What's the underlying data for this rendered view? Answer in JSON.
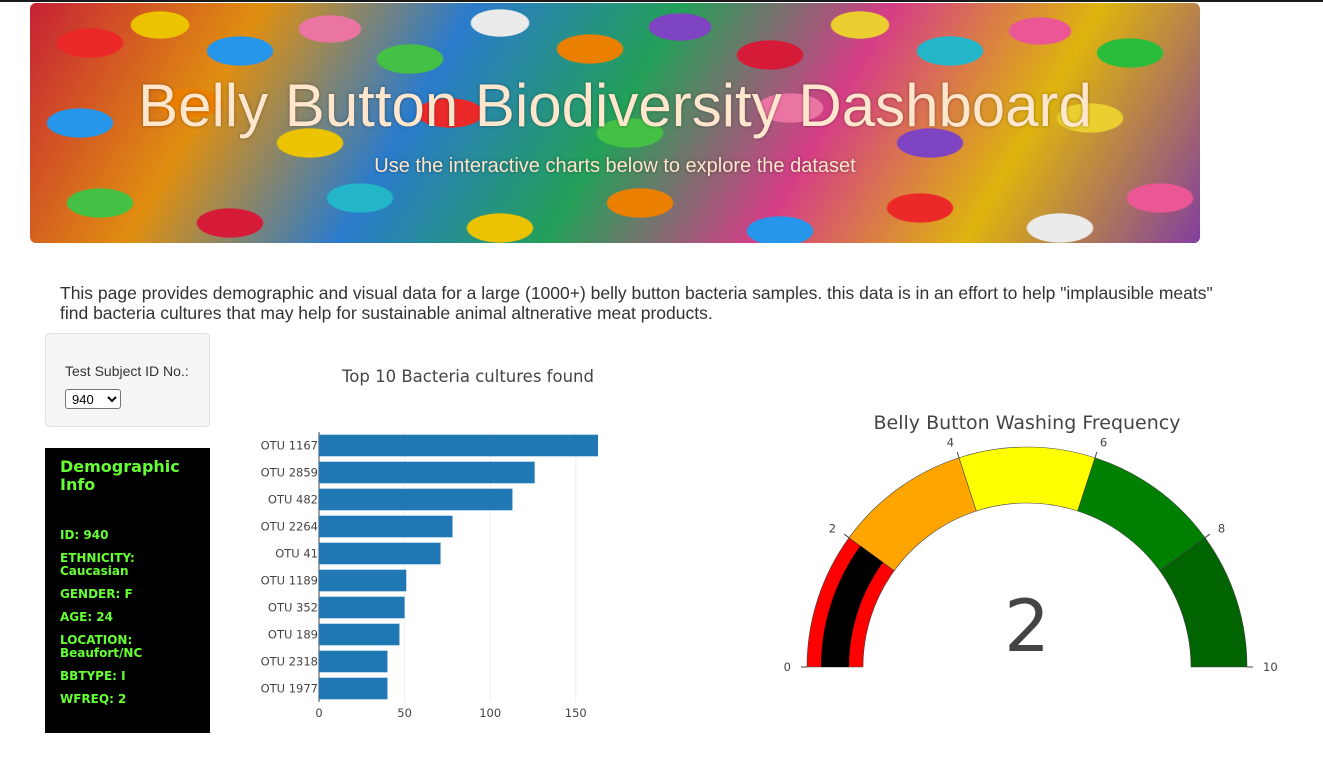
{
  "header": {
    "title": "Belly Button Biodiversity Dashboard",
    "subtitle": "Use the interactive charts below to explore the dataset"
  },
  "intro": "This page provides demographic and visual data for a large (1000+) belly button bacteria samples. this data is in an effort to help \"implausible meats\" find bacteria cultures that may help for sustainable animal altnerative meat products.",
  "selector": {
    "label": "Test Subject ID No.:",
    "selected": "940"
  },
  "demographic": {
    "title": "Demographic Info",
    "items": [
      "ID: 940",
      "ETHNICITY: Caucasian",
      "GENDER: F",
      "AGE: 24",
      "LOCATION: Beaufort/NC",
      "BBTYPE: I",
      "WFREQ: 2"
    ]
  },
  "chart_data": [
    {
      "type": "bar",
      "orientation": "horizontal",
      "title": "Top 10 Bacteria cultures found",
      "categories": [
        "OTU 1167",
        "OTU 2859",
        "OTU 482",
        "OTU 2264",
        "OTU 41",
        "OTU 1189",
        "OTU 352",
        "OTU 189",
        "OTU 2318",
        "OTU 1977"
      ],
      "values": [
        163,
        126,
        113,
        78,
        71,
        51,
        50,
        47,
        40,
        40
      ],
      "xticks": [
        0,
        50,
        100,
        150
      ],
      "xlim": [
        0,
        170
      ],
      "color": "#1f77b4",
      "grid": true
    },
    {
      "type": "gauge",
      "title": "Belly Button Washing Frequency",
      "value": 2,
      "range": [
        0,
        10
      ],
      "ticks": [
        0,
        2,
        4,
        6,
        8,
        10
      ],
      "bar_color": "#000000",
      "steps": [
        {
          "range": [
            0,
            2
          ],
          "color": "#ff0000"
        },
        {
          "range": [
            2,
            4
          ],
          "color": "#ffa500"
        },
        {
          "range": [
            4,
            6
          ],
          "color": "#ffff00"
        },
        {
          "range": [
            6,
            8
          ],
          "color": "#008000"
        },
        {
          "range": [
            8,
            10
          ],
          "color": "#006400"
        }
      ]
    }
  ]
}
